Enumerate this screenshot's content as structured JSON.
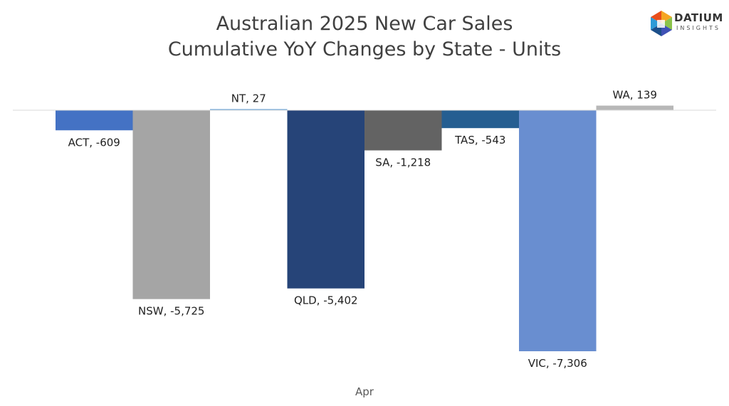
{
  "title_line1": "Australian 2025 New Car Sales",
  "title_line2": "Cumulative YoY Changes by State - Units",
  "logo": {
    "name": "DATIUM",
    "sub": "INSIGHTS"
  },
  "chart_data": {
    "type": "bar",
    "title": "Australian 2025 New Car Sales Cumulative YoY Changes by State - Units",
    "categories": [
      "Apr"
    ],
    "xlabel": "",
    "ylabel": "",
    "grid": false,
    "series": [
      {
        "name": "ACT",
        "values": [
          -609
        ],
        "color": "#4472C4",
        "label": "ACT, -609"
      },
      {
        "name": "NSW",
        "values": [
          -5725
        ],
        "color": "#A5A5A5",
        "label": "NSW, -5,725"
      },
      {
        "name": "NT",
        "values": [
          27
        ],
        "color": "#5B9BD5",
        "label": "NT, 27"
      },
      {
        "name": "QLD",
        "values": [
          -5402
        ],
        "color": "#264478",
        "label": "QLD, -5,402"
      },
      {
        "name": "SA",
        "values": [
          -1218
        ],
        "color": "#636363",
        "label": "SA, -1,218"
      },
      {
        "name": "TAS",
        "values": [
          -543
        ],
        "color": "#255E91",
        "label": "TAS, -543"
      },
      {
        "name": "VIC",
        "values": [
          -7306
        ],
        "color": "#698ED0",
        "label": "VIC, -7,306"
      },
      {
        "name": "WA",
        "values": [
          139
        ],
        "color": "#B7B7B7",
        "label": "WA, 139"
      }
    ]
  }
}
